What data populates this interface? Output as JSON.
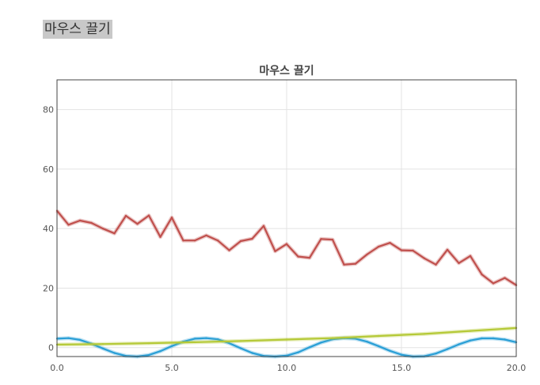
{
  "page": {
    "heading": "마우스 끌기"
  },
  "chart_data": {
    "type": "line",
    "title": "마우스 끌기",
    "xlabel": "",
    "ylabel": "",
    "xlim": [
      0,
      20
    ],
    "ylim": [
      -3,
      90
    ],
    "x_ticks": [
      0,
      5,
      10,
      15,
      20
    ],
    "x_tick_labels": [
      "0.0",
      "5.0",
      "10.0",
      "15.0",
      "20.0"
    ],
    "y_ticks": [
      0,
      20,
      40,
      60,
      80
    ],
    "y_tick_labels": [
      "0",
      "20",
      "40",
      "60",
      "80"
    ],
    "grid": true,
    "legend": "none",
    "series": [
      {
        "color": "#c0504d",
        "x": [
          0,
          0.5,
          1,
          1.5,
          2,
          2.5,
          3,
          3.5,
          4,
          4.5,
          5,
          5.5,
          6,
          6.5,
          7,
          7.5,
          8,
          8.5,
          9,
          9.5,
          10,
          10.5,
          11,
          11.5,
          12,
          12.5,
          13,
          13.5,
          14,
          14.5,
          15,
          15.5,
          16,
          16.5,
          17,
          17.5,
          18,
          18.5,
          19,
          19.5,
          20
        ],
        "y": [
          46,
          41.3,
          42.7,
          41.9,
          40,
          38.4,
          44.3,
          41.6,
          44.4,
          37.2,
          43.7,
          36,
          36,
          37.7,
          36,
          32.7,
          35.8,
          36.6,
          40.9,
          32.4,
          34.8,
          30.6,
          30.2,
          36.5,
          36.3,
          27.9,
          28.2,
          31.3,
          33.9,
          35.2,
          32.7,
          32.6,
          30,
          27.9,
          32.9,
          28.4,
          30.8,
          24.6,
          21.6,
          23.4,
          21
        ]
      },
      {
        "color": "#2a9fd6",
        "x": [
          0,
          0.5,
          1,
          1.5,
          2,
          2.5,
          3,
          3.5,
          4,
          4.5,
          5,
          5.5,
          6,
          6.5,
          7,
          7.5,
          8,
          8.5,
          9,
          9.5,
          10,
          10.5,
          11,
          11.5,
          12,
          12.5,
          13,
          13.5,
          14,
          14.5,
          15,
          15.5,
          16,
          16.5,
          17,
          17.5,
          18,
          18.5,
          19,
          19.5,
          20
        ],
        "y": [
          3,
          3.2,
          2.6,
          1.3,
          -0.3,
          -1.8,
          -2.8,
          -3,
          -2.5,
          -1.2,
          0.5,
          2,
          3,
          3.2,
          2.8,
          1.5,
          -0.2,
          -1.8,
          -2.8,
          -3,
          -2.7,
          -1.6,
          0.1,
          1.7,
          2.8,
          3.2,
          3,
          2,
          0.5,
          -1.1,
          -2.4,
          -3,
          -2.9,
          -2,
          -0.5,
          1.1,
          2.4,
          3.1,
          3.1,
          2.7,
          1.8
        ]
      },
      {
        "color": "#b5c937",
        "x": [
          0,
          2,
          4,
          6,
          8,
          10,
          12,
          14,
          16,
          18,
          20
        ],
        "y": [
          1,
          1.2,
          1.5,
          1.8,
          2.2,
          2.7,
          3.2,
          3.9,
          4.6,
          5.6,
          6.6
        ]
      }
    ]
  }
}
